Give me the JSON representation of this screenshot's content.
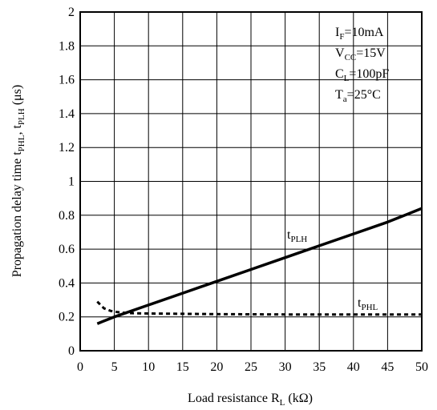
{
  "chart_data": {
    "type": "line",
    "xlabel": {
      "main": "Load resistance R",
      "sub": "L",
      "unit": " (kΩ)"
    },
    "ylabel": {
      "p1": "Propagation delay time t",
      "s1": "PHL",
      "p2": ", t",
      "s2": "PLH",
      "p3": " (μs)"
    },
    "xlim": [
      0,
      50
    ],
    "ylim": [
      0,
      2
    ],
    "grid": true,
    "xticks": [
      "0",
      "5",
      "10",
      "15",
      "20",
      "25",
      "30",
      "35",
      "40",
      "45",
      "50"
    ],
    "yticks": [
      "0",
      "0.2",
      "0.4",
      "0.6",
      "0.8",
      "1",
      "1.2",
      "1.4",
      "1.6",
      "1.8",
      "2"
    ],
    "conditions": [
      {
        "main": "I",
        "sub": "F",
        "rest": "=10mA"
      },
      {
        "main": "V",
        "sub": "CC",
        "rest": "=15V"
      },
      {
        "main": "C",
        "sub": "L",
        "rest": "=100pF"
      },
      {
        "main": "T",
        "sub": "a",
        "rest": "=25°C"
      }
    ],
    "series": [
      {
        "name": "PLH",
        "label_main": "t",
        "label_sub": "PLH",
        "style": "solid",
        "x": [
          2.5,
          5,
          10,
          15,
          20,
          25,
          30,
          35,
          40,
          45,
          50
        ],
        "y": [
          0.16,
          0.2,
          0.27,
          0.34,
          0.41,
          0.48,
          0.55,
          0.62,
          0.69,
          0.76,
          0.84
        ]
      },
      {
        "name": "PHL",
        "label_main": "t",
        "label_sub": "PHL",
        "style": "dashed",
        "x": [
          2.5,
          3.5,
          4.5,
          5.5,
          7,
          10,
          15,
          20,
          25,
          30,
          35,
          40,
          45,
          50
        ],
        "y": [
          0.29,
          0.25,
          0.235,
          0.228,
          0.222,
          0.22,
          0.218,
          0.216,
          0.215,
          0.214,
          0.214,
          0.214,
          0.214,
          0.214
        ]
      }
    ]
  }
}
